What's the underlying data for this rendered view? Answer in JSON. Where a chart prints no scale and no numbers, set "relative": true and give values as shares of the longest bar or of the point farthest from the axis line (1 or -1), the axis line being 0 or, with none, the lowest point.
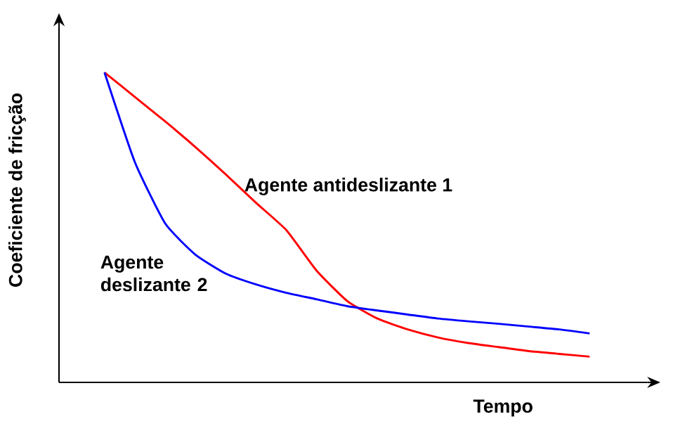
{
  "chart_data": {
    "type": "line",
    "relative": true,
    "xlabel": "Tempo",
    "ylabel": "Coeficiente de fricção",
    "categories": [
      null,
      null,
      null,
      null,
      null,
      null,
      null,
      null,
      null,
      null,
      null,
      null,
      null,
      null,
      null,
      null,
      null
    ],
    "series": [
      {
        "name": "Agente antideslizante 1",
        "color": "#ff0000",
        "values": [
          1.0,
          0.921,
          0.842,
          0.759,
          0.671,
          0.579,
          0.491,
          0.36,
          0.263,
          0.206,
          0.171,
          0.145,
          0.127,
          0.114,
          0.101,
          0.092,
          0.083
        ]
      },
      {
        "name": "Agente deslizante 2",
        "color": "#0000ff",
        "values": [
          1.0,
          0.711,
          0.513,
          0.412,
          0.351,
          0.316,
          0.289,
          0.268,
          0.246,
          0.232,
          0.219,
          0.206,
          0.197,
          0.189,
          0.18,
          0.171,
          0.158
        ]
      }
    ]
  }
}
